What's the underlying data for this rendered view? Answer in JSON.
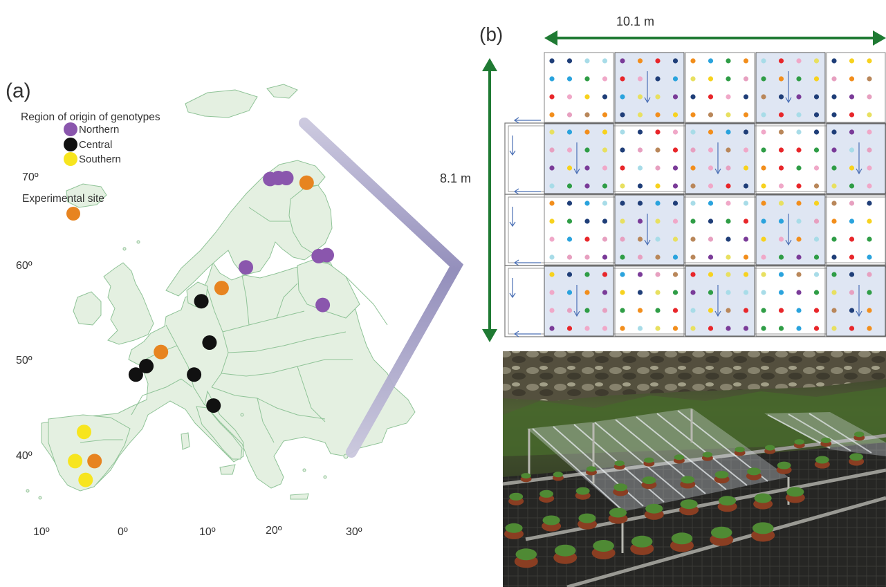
{
  "panel_a": {
    "label": "(a)",
    "legend": {
      "title": "Region of origin of genotypes",
      "items": [
        {
          "label": "Northern",
          "color": "#8a56ad"
        },
        {
          "label": "Central",
          "color": "#111111"
        },
        {
          "label": "Southern",
          "color": "#f7e51f"
        }
      ],
      "site_label": "Experimental site",
      "site_color": "#e78420"
    },
    "lat_labels": [
      "70º",
      "60º",
      "50º",
      "40º"
    ],
    "lon_labels": [
      "10º",
      "0º",
      "10º",
      "20º",
      "30º"
    ],
    "map_fill": "#e4f0e1",
    "map_stroke": "#8fc397",
    "points": [
      {
        "region": "northern",
        "lon": 18.0,
        "lat": 69.2
      },
      {
        "region": "northern",
        "lon": 19.0,
        "lat": 69.3
      },
      {
        "region": "northern",
        "lon": 20.0,
        "lat": 69.3
      },
      {
        "region": "northern",
        "lon": 24.0,
        "lat": 61.0
      },
      {
        "region": "northern",
        "lon": 25.0,
        "lat": 61.1
      },
      {
        "region": "northern",
        "lon": 15.0,
        "lat": 59.8
      },
      {
        "region": "northern",
        "lon": 24.5,
        "lat": 55.8
      },
      {
        "region": "central",
        "lon": 9.5,
        "lat": 56.2
      },
      {
        "region": "central",
        "lon": 10.5,
        "lat": 51.8
      },
      {
        "region": "central",
        "lon": 8.6,
        "lat": 48.4
      },
      {
        "region": "central",
        "lon": 1.4,
        "lat": 48.4
      },
      {
        "region": "central",
        "lon": 2.7,
        "lat": 49.3
      },
      {
        "region": "central",
        "lon": 11.0,
        "lat": 45.1
      },
      {
        "region": "southern",
        "lon": -5.0,
        "lat": 42.3
      },
      {
        "region": "southern",
        "lon": -6.1,
        "lat": 39.2
      },
      {
        "region": "southern",
        "lon": -4.8,
        "lat": 37.2
      },
      {
        "region": "site",
        "lon": 22.5,
        "lat": 68.8
      },
      {
        "region": "site",
        "lon": 12.0,
        "lat": 57.6
      },
      {
        "region": "site",
        "lon": 4.5,
        "lat": 50.8
      },
      {
        "region": "site",
        "lon": -3.7,
        "lat": 39.2
      }
    ]
  },
  "panel_b": {
    "label": "(b)",
    "width_label": "10.1 m",
    "height_label": "8.1 m",
    "arrow_color": "#1f7a33",
    "plot_shade": "#dfe6f3",
    "dot_colors": [
      "#f0a8c8",
      "#e8262a",
      "#f28e1c",
      "#f7d21e",
      "#2f9d46",
      "#1f3e78",
      "#2aa3dd",
      "#a8dce8",
      "#7a3b98",
      "#b9875a",
      "#e7a0c0",
      "#e8e060"
    ]
  }
}
